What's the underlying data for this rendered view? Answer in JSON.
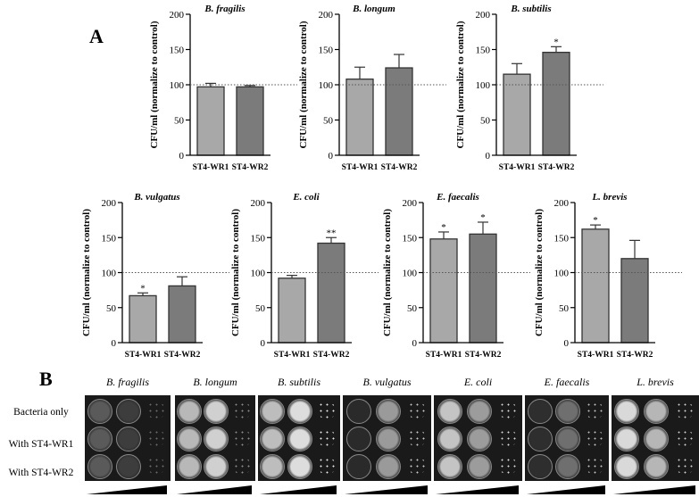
{
  "panel_a": {
    "letter": "A"
  },
  "panel_b": {
    "letter": "B",
    "rows": [
      "Bacteria only",
      "With ST4-WR1",
      "With ST4-WR2"
    ],
    "columns": [
      "B. fragilis",
      "B. longum",
      "B. subtilis",
      "B. vulgatus",
      "E. coli",
      "E. faecalis",
      "L. brevis"
    ]
  },
  "chart_data": [
    {
      "type": "bar",
      "title": "B. fragilis",
      "ylabel": "CFU/ml (normalize to control)",
      "xlabel": "",
      "categories": [
        "ST4-WR1",
        "ST4-WR2"
      ],
      "values": [
        97,
        97
      ],
      "errors": [
        5,
        2
      ],
      "significance": [
        "",
        ""
      ],
      "ylim": [
        0,
        200
      ],
      "yticks": [
        0,
        50,
        100,
        150,
        200
      ],
      "reference_line": 100,
      "colors": [
        "#a8a8a8",
        "#7b7b7b"
      ]
    },
    {
      "type": "bar",
      "title": "B. longum",
      "ylabel": "CFU/ml (normalize to control)",
      "xlabel": "",
      "categories": [
        "ST4-WR1",
        "ST4-WR2"
      ],
      "values": [
        108,
        124
      ],
      "errors": [
        17,
        19
      ],
      "significance": [
        "",
        ""
      ],
      "ylim": [
        0,
        200
      ],
      "yticks": [
        0,
        50,
        100,
        150,
        200
      ],
      "reference_line": 100,
      "colors": [
        "#a8a8a8",
        "#7b7b7b"
      ]
    },
    {
      "type": "bar",
      "title": "B. subtilis",
      "ylabel": "CFU/ml (normalize to control)",
      "xlabel": "",
      "categories": [
        "ST4-WR1",
        "ST4-WR2"
      ],
      "values": [
        115,
        146
      ],
      "errors": [
        15,
        8
      ],
      "significance": [
        "",
        "*"
      ],
      "ylim": [
        0,
        200
      ],
      "yticks": [
        0,
        50,
        100,
        150,
        200
      ],
      "reference_line": 100,
      "colors": [
        "#a8a8a8",
        "#7b7b7b"
      ]
    },
    {
      "type": "bar",
      "title": "B. vulgatus",
      "ylabel": "CFU/ml (normalize to control)",
      "xlabel": "",
      "categories": [
        "ST4-WR1",
        "ST4-WR2"
      ],
      "values": [
        67,
        81
      ],
      "errors": [
        4,
        13
      ],
      "significance": [
        "*",
        ""
      ],
      "ylim": [
        0,
        200
      ],
      "yticks": [
        0,
        50,
        100,
        150,
        200
      ],
      "reference_line": 100,
      "colors": [
        "#a8a8a8",
        "#7b7b7b"
      ]
    },
    {
      "type": "bar",
      "title": "E. coli",
      "ylabel": "CFU/ml (normalize to control)",
      "xlabel": "",
      "categories": [
        "ST4-WR1",
        "ST4-WR2"
      ],
      "values": [
        92,
        142
      ],
      "errors": [
        4,
        8
      ],
      "significance": [
        "",
        "**"
      ],
      "ylim": [
        0,
        200
      ],
      "yticks": [
        0,
        50,
        100,
        150,
        200
      ],
      "reference_line": 100,
      "colors": [
        "#a8a8a8",
        "#7b7b7b"
      ]
    },
    {
      "type": "bar",
      "title": "E. faecalis",
      "ylabel": "CFU/ml (normalize to control)",
      "xlabel": "",
      "categories": [
        "ST4-WR1",
        "ST4-WR2"
      ],
      "values": [
        148,
        155
      ],
      "errors": [
        10,
        17
      ],
      "significance": [
        "*",
        "*"
      ],
      "ylim": [
        0,
        200
      ],
      "yticks": [
        0,
        50,
        100,
        150,
        200
      ],
      "reference_line": 100,
      "colors": [
        "#a8a8a8",
        "#7b7b7b"
      ]
    },
    {
      "type": "bar",
      "title": "L. brevis",
      "ylabel": "CFU/ml (normalize to control)",
      "xlabel": "",
      "categories": [
        "ST4-WR1",
        "ST4-WR2"
      ],
      "values": [
        162,
        120
      ],
      "errors": [
        6,
        26
      ],
      "significance": [
        "*",
        ""
      ],
      "ylim": [
        0,
        200
      ],
      "yticks": [
        0,
        50,
        100,
        150,
        200
      ],
      "reference_line": 100,
      "colors": [
        "#a8a8a8",
        "#7b7b7b"
      ]
    }
  ]
}
